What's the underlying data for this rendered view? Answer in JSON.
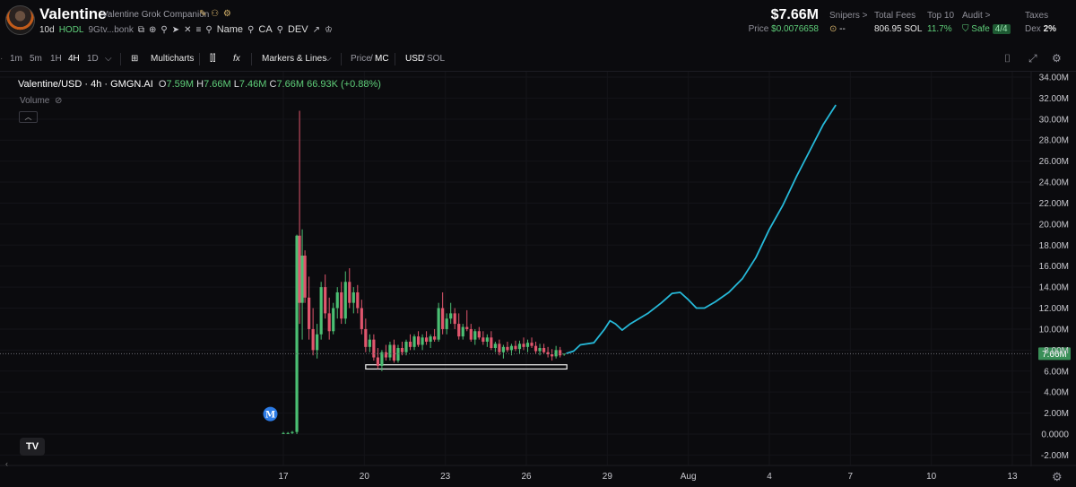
{
  "header": {
    "name": "Valentine",
    "full_name": "Valentine Grok Companion",
    "age": "10d",
    "hodl": "HODL",
    "address": "9Gtv...bonk",
    "links": [
      "Name",
      "CA",
      "DEV"
    ],
    "market_cap": "$7.66M",
    "price_label": "Price",
    "price_value": "$0.0076658",
    "stats": {
      "snipers_label": "Snipers >",
      "snipers_value": "--",
      "fees_label": "Total Fees",
      "fees_value": "806.95 SOL",
      "top10_label": "Top 10",
      "top10_value": "11.7%",
      "audit_label": "Audit >",
      "audit_value": "Safe",
      "audit_badge": "4/4",
      "taxes_label": "Taxes",
      "taxes_prefix": "Dex",
      "taxes_value": "2%"
    }
  },
  "toolbar": {
    "intervals": [
      "1m",
      "5m",
      "1H",
      "4H",
      "1D"
    ],
    "active_interval": "4H",
    "multicharts": "Multicharts",
    "markers": "Markers & Lines",
    "price_label": "Price",
    "mc_label": "MC",
    "usd_label": "USD",
    "sol_label": "SOL"
  },
  "chart_legend": {
    "symbol": "Valentine/USD · 4h · GMGN.AI",
    "o_label": "O",
    "o_value": "7.59M",
    "h_label": "H",
    "h_value": "7.66M",
    "l_label": "L",
    "l_value": "7.46M",
    "c_label": "C",
    "c_value": "7.66M",
    "change": "66.93K (+0.88%)",
    "volume_label": "Volume",
    "marker_label": "M",
    "last_price_label": "7.66M"
  },
  "colors": {
    "up": "#4bbf73",
    "down": "#e0566d",
    "projection": "#26b9d9",
    "background": "#0b0b0e"
  },
  "chart_data": {
    "type": "candlestick",
    "title": "",
    "y_unit": "market cap (USD)",
    "ylim": [
      -3000000,
      34500000
    ],
    "y_ticks": [
      "34.00M",
      "32.00M",
      "30.00M",
      "28.00M",
      "26.00M",
      "24.00M",
      "22.00M",
      "20.00M",
      "18.00M",
      "16.00M",
      "14.00M",
      "12.00M",
      "10.00M",
      "8.00M",
      "6.00M",
      "4.00M",
      "2.00M",
      "0.0000",
      "-2.00M"
    ],
    "y_tick_values": [
      34,
      32,
      30,
      28,
      26,
      24,
      22,
      20,
      18,
      16,
      14,
      12,
      10,
      8,
      6,
      4,
      2,
      0,
      -2
    ],
    "x_ticks": [
      "17",
      "20",
      "23",
      "26",
      "29",
      "Aug",
      "4",
      "7",
      "10",
      "13"
    ],
    "x_tick_days": [
      17,
      20,
      23,
      26,
      29,
      32,
      35,
      38,
      41,
      44
    ],
    "last_value_M": 7.66,
    "candles_M": [
      [
        17.0,
        0.1,
        0.2,
        0.0,
        0.1
      ],
      [
        17.17,
        0.1,
        0.2,
        0.0,
        0.1
      ],
      [
        17.33,
        0.1,
        0.3,
        0.0,
        0.2
      ],
      [
        17.5,
        0.2,
        19.0,
        0.0,
        18.9
      ],
      [
        17.6,
        18.9,
        30.8,
        10.5,
        12.5
      ],
      [
        17.7,
        12.5,
        19.5,
        9.0,
        17.0
      ],
      [
        17.8,
        17.0,
        17.5,
        12.5,
        13.0
      ],
      [
        17.95,
        13.0,
        15.0,
        9.0,
        10.0
      ],
      [
        18.1,
        10.0,
        12.0,
        7.5,
        8.0
      ],
      [
        18.25,
        8.0,
        10.5,
        7.2,
        9.5
      ],
      [
        18.4,
        9.5,
        14.5,
        9.0,
        14.0
      ],
      [
        18.55,
        14.0,
        15.2,
        11.0,
        11.5
      ],
      [
        18.7,
        11.5,
        13.0,
        9.0,
        9.8
      ],
      [
        18.85,
        9.8,
        12.5,
        9.5,
        12.0
      ],
      [
        19.0,
        12.0,
        14.0,
        11.0,
        13.5
      ],
      [
        19.15,
        13.5,
        14.5,
        10.5,
        11.0
      ],
      [
        19.3,
        11.0,
        15.5,
        10.5,
        14.5
      ],
      [
        19.45,
        14.5,
        15.8,
        12.0,
        12.5
      ],
      [
        19.6,
        12.5,
        14.0,
        11.5,
        13.5
      ],
      [
        19.75,
        13.5,
        14.2,
        11.5,
        12.0
      ],
      [
        19.9,
        12.0,
        12.8,
        9.5,
        10.0
      ],
      [
        20.05,
        10.0,
        11.0,
        7.8,
        8.3
      ],
      [
        20.2,
        8.3,
        9.5,
        7.8,
        9.0
      ],
      [
        20.35,
        9.0,
        9.5,
        7.0,
        7.3
      ],
      [
        20.5,
        7.3,
        8.2,
        6.2,
        6.5
      ],
      [
        20.65,
        6.5,
        8.0,
        6.0,
        7.8
      ],
      [
        20.8,
        7.8,
        8.5,
        7.0,
        7.3
      ],
      [
        20.95,
        7.3,
        8.8,
        7.0,
        8.5
      ],
      [
        21.1,
        8.5,
        9.0,
        6.8,
        7.0
      ],
      [
        21.25,
        7.0,
        8.5,
        6.8,
        8.2
      ],
      [
        21.4,
        8.2,
        8.8,
        7.5,
        7.8
      ],
      [
        21.55,
        7.8,
        9.0,
        7.5,
        8.8
      ],
      [
        21.7,
        8.8,
        9.5,
        8.0,
        8.3
      ],
      [
        21.85,
        8.3,
        9.5,
        8.0,
        9.3
      ],
      [
        22.0,
        9.3,
        9.8,
        8.3,
        8.5
      ],
      [
        22.15,
        8.5,
        9.5,
        8.0,
        9.2
      ],
      [
        22.3,
        9.2,
        9.8,
        8.5,
        8.8
      ],
      [
        22.45,
        8.8,
        9.5,
        8.2,
        9.3
      ],
      [
        22.6,
        9.3,
        10.0,
        8.8,
        9.0
      ],
      [
        22.75,
        9.0,
        12.5,
        8.8,
        12.0
      ],
      [
        22.9,
        12.0,
        13.5,
        9.5,
        10.0
      ],
      [
        23.05,
        10.0,
        11.5,
        9.5,
        11.0
      ],
      [
        23.2,
        11.0,
        12.5,
        10.5,
        11.5
      ],
      [
        23.35,
        11.5,
        12.0,
        10.0,
        10.5
      ],
      [
        23.5,
        10.5,
        11.5,
        9.0,
        9.3
      ],
      [
        23.65,
        9.3,
        10.5,
        9.0,
        10.2
      ],
      [
        23.8,
        10.2,
        11.8,
        9.8,
        10.0
      ],
      [
        23.95,
        10.0,
        10.5,
        8.8,
        9.0
      ],
      [
        24.1,
        9.0,
        10.0,
        8.5,
        9.8
      ],
      [
        24.25,
        9.8,
        10.2,
        9.0,
        9.2
      ],
      [
        24.4,
        9.2,
        9.8,
        8.5,
        8.8
      ],
      [
        24.55,
        8.8,
        9.5,
        8.3,
        9.2
      ],
      [
        24.7,
        9.2,
        9.8,
        8.0,
        8.2
      ],
      [
        24.85,
        8.2,
        8.8,
        7.8,
        8.6
      ],
      [
        25.0,
        8.6,
        9.0,
        7.5,
        7.8
      ],
      [
        25.15,
        7.8,
        8.5,
        7.2,
        8.3
      ],
      [
        25.3,
        8.3,
        8.8,
        7.8,
        8.0
      ],
      [
        25.45,
        8.0,
        8.6,
        7.5,
        8.4
      ],
      [
        25.6,
        8.4,
        8.9,
        7.9,
        8.1
      ],
      [
        25.75,
        8.1,
        8.9,
        7.6,
        8.6
      ],
      [
        25.9,
        8.6,
        9.2,
        8.0,
        8.3
      ],
      [
        26.05,
        8.3,
        9.0,
        7.8,
        8.7
      ],
      [
        26.2,
        8.7,
        9.2,
        8.2,
        8.4
      ],
      [
        26.35,
        8.4,
        8.8,
        7.6,
        7.9
      ],
      [
        26.5,
        7.9,
        8.6,
        7.5,
        8.2
      ],
      [
        26.65,
        8.2,
        8.6,
        7.6,
        7.8
      ],
      [
        26.8,
        7.8,
        8.3,
        7.3,
        7.6
      ],
      [
        26.95,
        7.6,
        8.1,
        7.0,
        7.4
      ],
      [
        27.1,
        7.4,
        8.4,
        7.2,
        8.0
      ],
      [
        27.25,
        8.0,
        8.3,
        7.3,
        7.5
      ],
      [
        27.4,
        7.59,
        7.66,
        7.46,
        7.66
      ]
    ],
    "support_box_M": {
      "x_start_day": 20.05,
      "x_end_day": 27.5,
      "y_low": 6.2,
      "y_high": 6.6
    },
    "marker": {
      "day": 16.95,
      "value_M": 2.0,
      "label": "M"
    },
    "projection_M": [
      [
        27.5,
        7.7
      ],
      [
        27.75,
        7.9
      ],
      [
        28.0,
        8.5
      ],
      [
        28.5,
        8.7
      ],
      [
        28.9,
        10.0
      ],
      [
        29.1,
        10.8
      ],
      [
        29.3,
        10.5
      ],
      [
        29.55,
        9.9
      ],
      [
        29.85,
        10.5
      ],
      [
        30.5,
        11.5
      ],
      [
        31.0,
        12.5
      ],
      [
        31.4,
        13.4
      ],
      [
        31.7,
        13.5
      ],
      [
        32.0,
        12.8
      ],
      [
        32.3,
        12.0
      ],
      [
        32.6,
        12.0
      ],
      [
        33.0,
        12.6
      ],
      [
        33.5,
        13.5
      ],
      [
        34.0,
        14.8
      ],
      [
        34.5,
        16.8
      ],
      [
        35.0,
        19.5
      ],
      [
        35.5,
        21.8
      ],
      [
        36.0,
        24.5
      ],
      [
        36.5,
        27.0
      ],
      [
        37.0,
        29.5
      ],
      [
        37.45,
        31.3
      ]
    ]
  }
}
